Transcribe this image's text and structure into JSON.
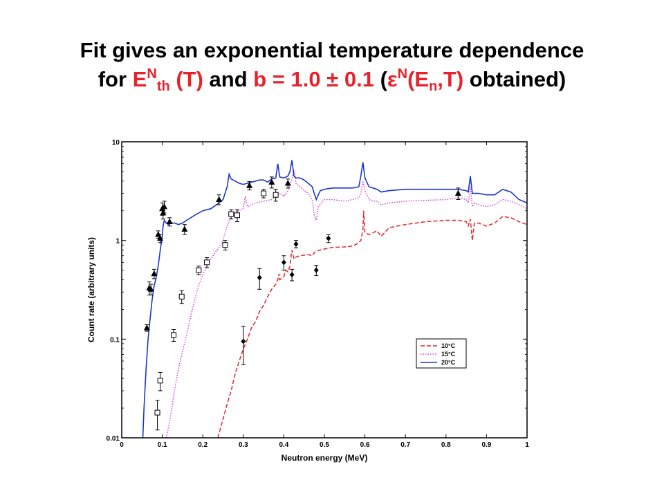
{
  "header": {
    "line1": "Fit gives an exponential temperature dependence",
    "line2": {
      "for": "for ",
      "e_base": "E",
      "e_sup": "N",
      "e_sub": "th",
      "t": " (T)",
      "and": " and ",
      "b": "b = 1.0 ± 0.1",
      "open": " (",
      "eps": "ε",
      "eps_sup": "N",
      "eps_args_open": "(E",
      "eps_sub": "n",
      "eps_args_close": ",T)",
      "tail": " obtained)"
    },
    "accent_color": "#e8222a"
  },
  "chart_data": {
    "type": "line",
    "xlabel": "Neutron energy (MeV)",
    "ylabel": "Count rate (arbitrary units)",
    "xlim": [
      0,
      1
    ],
    "ylim": [
      0.01,
      10
    ],
    "yscale": "log",
    "x_ticks": [
      "0",
      "0.1",
      "0.2",
      "0.3",
      "0.4",
      "0.5",
      "0.6",
      "0.7",
      "0.8",
      "0.9",
      "1"
    ],
    "y_ticks": [
      {
        "value": 0.01,
        "label": "0.01"
      },
      {
        "value": 0.1,
        "label": "0.1"
      },
      {
        "value": 1,
        "label": "1"
      },
      {
        "value": 10,
        "label": "10"
      }
    ],
    "legend_position": "lower-right",
    "series": [
      {
        "name": "10°C",
        "color": "#e8222a",
        "style": "dashed",
        "points": [
          [
            0.237,
            0.01
          ],
          [
            0.25,
            0.0155
          ],
          [
            0.26,
            0.022
          ],
          [
            0.27,
            0.03
          ],
          [
            0.28,
            0.045
          ],
          [
            0.29,
            0.06
          ],
          [
            0.3,
            0.08
          ],
          [
            0.31,
            0.1
          ],
          [
            0.32,
            0.13
          ],
          [
            0.33,
            0.15
          ],
          [
            0.34,
            0.19
          ],
          [
            0.35,
            0.22
          ],
          [
            0.36,
            0.27
          ],
          [
            0.37,
            0.32
          ],
          [
            0.38,
            0.36
          ],
          [
            0.385,
            0.4
          ],
          [
            0.388,
            0.46
          ],
          [
            0.39,
            0.4
          ],
          [
            0.4,
            0.43
          ],
          [
            0.405,
            0.5
          ],
          [
            0.41,
            0.48
          ],
          [
            0.415,
            0.55
          ],
          [
            0.418,
            0.7
          ],
          [
            0.42,
            0.8
          ],
          [
            0.425,
            0.65
          ],
          [
            0.43,
            0.68
          ],
          [
            0.44,
            0.7
          ],
          [
            0.46,
            0.72
          ],
          [
            0.47,
            0.7
          ],
          [
            0.475,
            0.75
          ],
          [
            0.48,
            0.78
          ],
          [
            0.49,
            0.8
          ],
          [
            0.5,
            0.82
          ],
          [
            0.52,
            0.85
          ],
          [
            0.55,
            0.86
          ],
          [
            0.57,
            0.88
          ],
          [
            0.58,
            0.92
          ],
          [
            0.59,
            1.0
          ],
          [
            0.595,
            1.3
          ],
          [
            0.597,
            2.0
          ],
          [
            0.6,
            1.2
          ],
          [
            0.61,
            1.15
          ],
          [
            0.62,
            1.2
          ],
          [
            0.63,
            1.25
          ],
          [
            0.64,
            1.1
          ],
          [
            0.66,
            1.35
          ],
          [
            0.7,
            1.45
          ],
          [
            0.75,
            1.55
          ],
          [
            0.8,
            1.6
          ],
          [
            0.83,
            1.6
          ],
          [
            0.85,
            1.55
          ],
          [
            0.855,
            1.4
          ],
          [
            0.86,
            1.65
          ],
          [
            0.865,
            1.0
          ],
          [
            0.87,
            1.5
          ],
          [
            0.88,
            1.5
          ],
          [
            0.9,
            1.4
          ],
          [
            0.92,
            1.5
          ],
          [
            0.94,
            1.75
          ],
          [
            0.96,
            1.7
          ],
          [
            0.98,
            1.55
          ],
          [
            1.0,
            1.45
          ]
        ]
      },
      {
        "name": "15°C",
        "color": "#d63adf",
        "style": "dotted",
        "points": [
          [
            0.11,
            0.01
          ],
          [
            0.12,
            0.016
          ],
          [
            0.13,
            0.03
          ],
          [
            0.14,
            0.05
          ],
          [
            0.15,
            0.075
          ],
          [
            0.16,
            0.11
          ],
          [
            0.17,
            0.17
          ],
          [
            0.18,
            0.25
          ],
          [
            0.19,
            0.35
          ],
          [
            0.2,
            0.45
          ],
          [
            0.21,
            0.55
          ],
          [
            0.22,
            0.65
          ],
          [
            0.23,
            0.75
          ],
          [
            0.24,
            0.85
          ],
          [
            0.25,
            1.0
          ],
          [
            0.255,
            1.2
          ],
          [
            0.26,
            1.4
          ],
          [
            0.27,
            1.8
          ],
          [
            0.28,
            1.95
          ],
          [
            0.29,
            2.0
          ],
          [
            0.3,
            2.1
          ],
          [
            0.305,
            2.8
          ],
          [
            0.31,
            2.2
          ],
          [
            0.32,
            2.3
          ],
          [
            0.33,
            2.4
          ],
          [
            0.35,
            2.5
          ],
          [
            0.37,
            2.6
          ],
          [
            0.38,
            2.8
          ],
          [
            0.39,
            3.0
          ],
          [
            0.4,
            2.8
          ],
          [
            0.41,
            3.2
          ],
          [
            0.415,
            3.6
          ],
          [
            0.42,
            4.2
          ],
          [
            0.425,
            5.2
          ],
          [
            0.43,
            3.8
          ],
          [
            0.44,
            3.5
          ],
          [
            0.45,
            3.2
          ],
          [
            0.46,
            3.0
          ],
          [
            0.47,
            2.6
          ],
          [
            0.475,
            1.8
          ],
          [
            0.48,
            1.6
          ],
          [
            0.485,
            2.2
          ],
          [
            0.5,
            2.6
          ],
          [
            0.52,
            2.6
          ],
          [
            0.55,
            2.5
          ],
          [
            0.57,
            2.6
          ],
          [
            0.585,
            2.7
          ],
          [
            0.59,
            3.0
          ],
          [
            0.595,
            4.0
          ],
          [
            0.6,
            3.2
          ],
          [
            0.61,
            2.6
          ],
          [
            0.62,
            2.5
          ],
          [
            0.63,
            2.5
          ],
          [
            0.64,
            2.3
          ],
          [
            0.66,
            2.4
          ],
          [
            0.7,
            2.5
          ],
          [
            0.75,
            2.55
          ],
          [
            0.8,
            2.6
          ],
          [
            0.83,
            2.7
          ],
          [
            0.85,
            2.6
          ],
          [
            0.855,
            2.4
          ],
          [
            0.86,
            3.5
          ],
          [
            0.865,
            2.2
          ],
          [
            0.87,
            2.4
          ],
          [
            0.88,
            2.3
          ],
          [
            0.9,
            2.2
          ],
          [
            0.92,
            2.3
          ],
          [
            0.94,
            2.6
          ],
          [
            0.96,
            2.5
          ],
          [
            0.98,
            2.3
          ],
          [
            1.0,
            2.1
          ]
        ]
      },
      {
        "name": "20°C",
        "color": "#1a35cc",
        "style": "solid",
        "points": [
          [
            0.052,
            0.01
          ],
          [
            0.055,
            0.02
          ],
          [
            0.06,
            0.05
          ],
          [
            0.065,
            0.1
          ],
          [
            0.07,
            0.16
          ],
          [
            0.075,
            0.25
          ],
          [
            0.08,
            0.35
          ],
          [
            0.085,
            0.42
          ],
          [
            0.09,
            0.55
          ],
          [
            0.095,
            0.8
          ],
          [
            0.1,
            1.1
          ],
          [
            0.102,
            1.4
          ],
          [
            0.105,
            1.6
          ],
          [
            0.11,
            1.5
          ],
          [
            0.115,
            1.45
          ],
          [
            0.12,
            1.5
          ],
          [
            0.13,
            1.5
          ],
          [
            0.14,
            1.45
          ],
          [
            0.15,
            1.5
          ],
          [
            0.16,
            1.6
          ],
          [
            0.18,
            1.8
          ],
          [
            0.2,
            2.0
          ],
          [
            0.22,
            2.1
          ],
          [
            0.24,
            2.4
          ],
          [
            0.25,
            2.6
          ],
          [
            0.26,
            3.5
          ],
          [
            0.265,
            4.7
          ],
          [
            0.27,
            4.2
          ],
          [
            0.28,
            4.0
          ],
          [
            0.29,
            3.8
          ],
          [
            0.3,
            3.7
          ],
          [
            0.31,
            3.8
          ],
          [
            0.32,
            3.9
          ],
          [
            0.33,
            4.0
          ],
          [
            0.34,
            4.1
          ],
          [
            0.35,
            4.1
          ],
          [
            0.36,
            3.9
          ],
          [
            0.37,
            4.2
          ],
          [
            0.38,
            4.3
          ],
          [
            0.385,
            6.0
          ],
          [
            0.39,
            4.4
          ],
          [
            0.4,
            4.3
          ],
          [
            0.41,
            4.5
          ],
          [
            0.415,
            5.0
          ],
          [
            0.42,
            6.5
          ],
          [
            0.425,
            4.5
          ],
          [
            0.43,
            4.3
          ],
          [
            0.44,
            4.3
          ],
          [
            0.45,
            4.1
          ],
          [
            0.46,
            3.8
          ],
          [
            0.47,
            3.5
          ],
          [
            0.475,
            3.0
          ],
          [
            0.48,
            2.6
          ],
          [
            0.485,
            2.9
          ],
          [
            0.49,
            3.2
          ],
          [
            0.5,
            3.3
          ],
          [
            0.52,
            3.4
          ],
          [
            0.55,
            3.4
          ],
          [
            0.57,
            3.4
          ],
          [
            0.585,
            3.5
          ],
          [
            0.59,
            4.5
          ],
          [
            0.595,
            6.2
          ],
          [
            0.6,
            4.3
          ],
          [
            0.61,
            3.5
          ],
          [
            0.62,
            3.4
          ],
          [
            0.63,
            3.3
          ],
          [
            0.64,
            3.1
          ],
          [
            0.66,
            3.2
          ],
          [
            0.7,
            3.3
          ],
          [
            0.75,
            3.3
          ],
          [
            0.8,
            3.3
          ],
          [
            0.83,
            3.3
          ],
          [
            0.85,
            3.2
          ],
          [
            0.855,
            3.1
          ],
          [
            0.86,
            4.5
          ],
          [
            0.865,
            3.0
          ],
          [
            0.87,
            3.0
          ],
          [
            0.88,
            3.0
          ],
          [
            0.9,
            2.9
          ],
          [
            0.92,
            2.9
          ],
          [
            0.94,
            3.3
          ],
          [
            0.96,
            3.1
          ],
          [
            0.98,
            2.6
          ],
          [
            1.0,
            2.4
          ]
        ]
      }
    ],
    "markers": [
      {
        "shape": "triangle",
        "points": [
          [
            0.062,
            0.13,
            0.01
          ],
          [
            0.068,
            0.33,
            0.05
          ],
          [
            0.072,
            0.32,
            0.04
          ],
          [
            0.08,
            0.46,
            0.05
          ],
          [
            0.09,
            1.15,
            0.1
          ],
          [
            0.095,
            1.05,
            0.1
          ],
          [
            0.1,
            2.1,
            0.3
          ],
          [
            0.105,
            2.2,
            0.3
          ],
          [
            0.102,
            1.9,
            0.25
          ],
          [
            0.118,
            1.55,
            0.15
          ],
          [
            0.155,
            1.3,
            0.15
          ],
          [
            0.24,
            2.6,
            0.3
          ],
          [
            0.315,
            3.6,
            0.35
          ],
          [
            0.37,
            3.9,
            0.5
          ],
          [
            0.41,
            3.8,
            0.4
          ],
          [
            0.83,
            3.0,
            0.4
          ]
        ]
      },
      {
        "shape": "square",
        "points": [
          [
            0.088,
            0.018,
            0.006
          ],
          [
            0.095,
            0.038,
            0.008
          ],
          [
            0.148,
            0.27,
            0.04
          ],
          [
            0.128,
            0.11,
            0.015
          ],
          [
            0.19,
            0.5,
            0.05
          ],
          [
            0.21,
            0.6,
            0.07
          ],
          [
            0.255,
            0.9,
            0.1
          ],
          [
            0.27,
            1.85,
            0.2
          ],
          [
            0.285,
            1.8,
            0.25
          ],
          [
            0.35,
            3.0,
            0.3
          ],
          [
            0.38,
            2.9,
            0.4
          ]
        ]
      },
      {
        "shape": "diamond",
        "points": [
          [
            0.3,
            0.095,
            0.04
          ],
          [
            0.34,
            0.42,
            0.1
          ],
          [
            0.4,
            0.6,
            0.1
          ],
          [
            0.42,
            0.45,
            0.06
          ],
          [
            0.43,
            0.92,
            0.08
          ],
          [
            0.48,
            0.5,
            0.06
          ],
          [
            0.51,
            1.05,
            0.1
          ]
        ]
      }
    ]
  }
}
